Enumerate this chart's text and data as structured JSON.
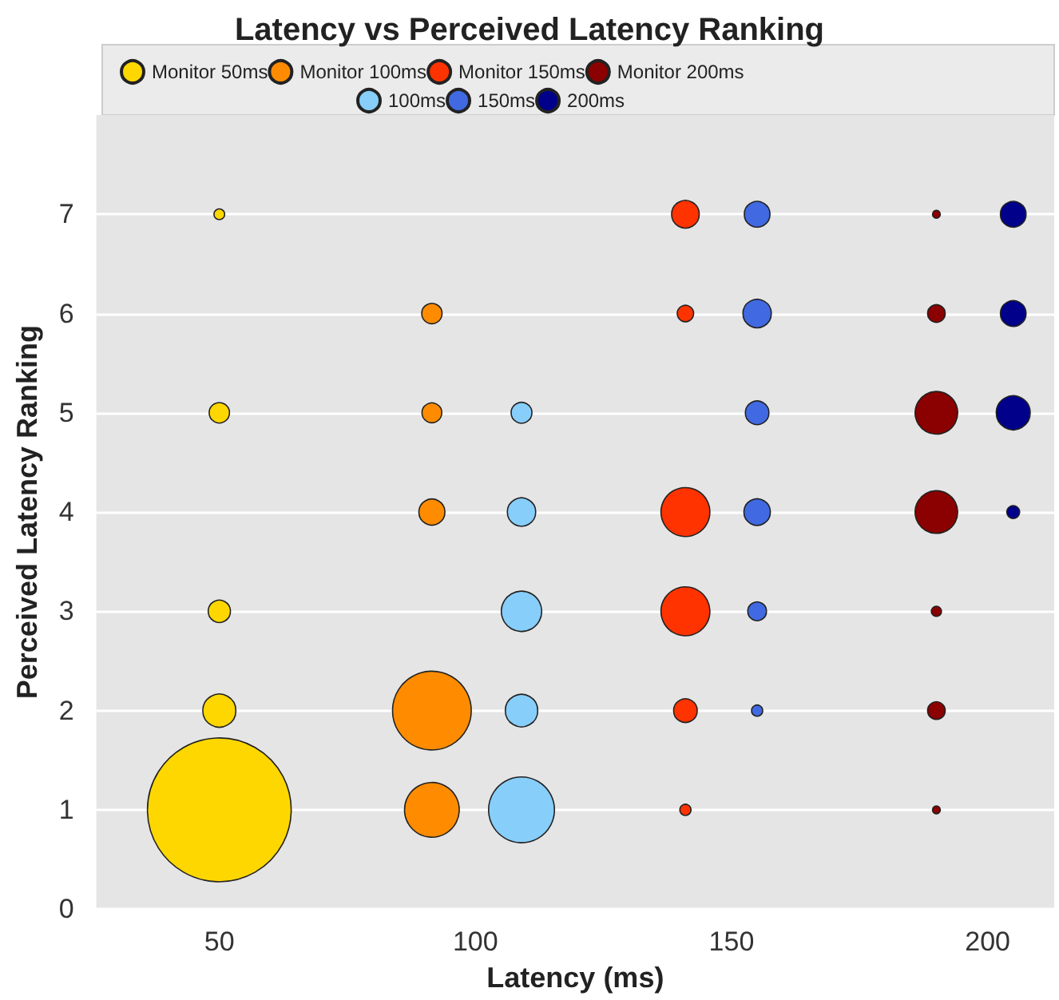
{
  "chart_data": {
    "type": "bubble",
    "title": "Latency vs Perceived Latency Ranking",
    "xlabel": "Latency (ms)",
    "ylabel": "Perceived Latency Ranking",
    "xlim": [
      26,
      213
    ],
    "xticks": [
      50,
      100,
      150,
      200
    ],
    "ylim": [
      0,
      8
    ],
    "yticks": [
      0,
      1,
      2,
      3,
      4,
      5,
      6,
      7
    ],
    "grid": "y",
    "legend": "top",
    "marker": "circle",
    "series": [
      {
        "name": "Monitor 50ms",
        "color": "#ffd700",
        "x": [
          50,
          50,
          50,
          50,
          50
        ],
        "values": [
          7,
          5,
          3,
          2,
          1
        ],
        "sizes": [
          0.0055,
          0.02,
          0.024,
          0.053,
          1
        ]
      },
      {
        "name": "Monitor 100ms",
        "color": "#ff8c00",
        "x": [
          91.5,
          91.5,
          91.5,
          91.5,
          91.5
        ],
        "values": [
          6,
          5,
          4,
          2,
          1
        ],
        "sizes": [
          0.02,
          0.019,
          0.033,
          0.3,
          0.145
        ]
      },
      {
        "name": "Monitor 150ms",
        "color": "#ff3300",
        "x": [
          141,
          141,
          141,
          141,
          141,
          141
        ],
        "values": [
          7,
          6,
          4,
          3,
          2,
          1
        ],
        "sizes": [
          0.037,
          0.013,
          0.116,
          0.116,
          0.027,
          0.006
        ]
      },
      {
        "name": "Monitor 200ms",
        "color": "#8b0000",
        "x": [
          190,
          190,
          190,
          190,
          190,
          190,
          190
        ],
        "values": [
          7,
          6,
          5,
          4,
          3,
          2,
          1
        ],
        "sizes": [
          0.003,
          0.015,
          0.088,
          0.088,
          0.005,
          0.015,
          0.003
        ]
      },
      {
        "name": "100ms",
        "color": "#87cefa",
        "x": [
          109,
          109,
          109,
          109,
          109
        ],
        "values": [
          5,
          4,
          3,
          2,
          1
        ],
        "sizes": [
          0.021,
          0.039,
          0.079,
          0.051,
          0.21
        ]
      },
      {
        "name": "150ms",
        "color": "#4169e1",
        "x": [
          155,
          155,
          155,
          155,
          155,
          155
        ],
        "values": [
          7,
          6,
          5,
          4,
          3,
          2
        ],
        "sizes": [
          0.032,
          0.039,
          0.027,
          0.034,
          0.017,
          0.006
        ]
      },
      {
        "name": "200ms",
        "color": "#00008b",
        "x": [
          205,
          205,
          205,
          205
        ],
        "values": [
          7,
          6,
          5,
          4
        ],
        "sizes": [
          0.032,
          0.032,
          0.056,
          0.008
        ]
      }
    ]
  }
}
